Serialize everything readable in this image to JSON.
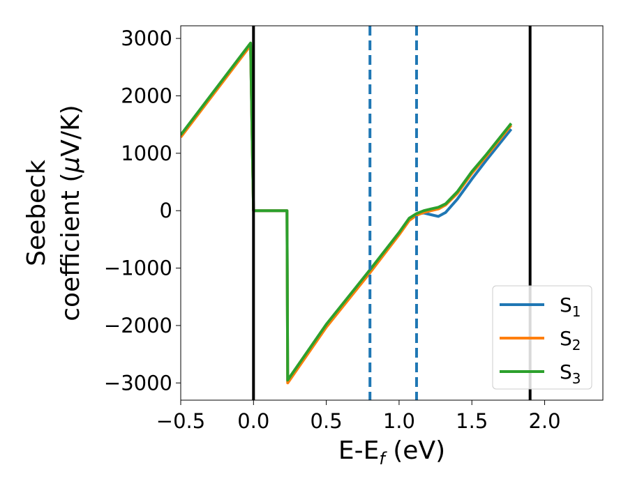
{
  "chart_data": {
    "type": "line",
    "title": "",
    "xlabel": {
      "base": "E-E",
      "sub": "f",
      "suffix": " (eV)"
    },
    "ylabel": {
      "line1": "Seebeck",
      "line2_pre": "coefficient  (",
      "mu": "μ",
      "line2_post": "V/K)"
    },
    "xlim": [
      -0.5,
      2.4
    ],
    "ylim": [
      -3300,
      3220
    ],
    "xticks": [
      -0.5,
      0.0,
      0.5,
      1.0,
      1.5,
      2.0
    ],
    "xtick_labels": [
      "−0.5",
      "0.0",
      "0.5",
      "1.0",
      "1.5",
      "2.0"
    ],
    "yticks": [
      -3000,
      -2000,
      -1000,
      0,
      1000,
      2000,
      3000
    ],
    "ytick_labels": [
      "−3000",
      "−2000",
      "−1000",
      "0",
      "1000",
      "2000",
      "3000"
    ],
    "grid": false,
    "legend_position": "bottom-right",
    "vlines": [
      {
        "x": 0.0,
        "style": "solid",
        "color": "#000000"
      },
      {
        "x": 1.9,
        "style": "solid",
        "color": "#000000"
      },
      {
        "x": 0.8,
        "style": "dashed",
        "color": "#1f77b4"
      },
      {
        "x": 1.12,
        "style": "dashed",
        "color": "#1f77b4"
      }
    ],
    "series": [
      {
        "name": "S",
        "sub": "1",
        "color": "#1f77b4",
        "x": [
          -0.5,
          -0.02,
          -0.01,
          0.0,
          0.23,
          0.235,
          0.5,
          0.8,
          1.0,
          1.07,
          1.12,
          1.17,
          1.22,
          1.27,
          1.32,
          1.4,
          1.5,
          1.6,
          1.77
        ],
        "y": [
          1300,
          2900,
          1400,
          0,
          0,
          -2980,
          -2000,
          -1050,
          -400,
          -150,
          -60,
          -40,
          -70,
          -100,
          -30,
          200,
          550,
          880,
          1420
        ]
      },
      {
        "name": "S",
        "sub": "2",
        "color": "#ff7f0e",
        "x": [
          -0.5,
          -0.02,
          -0.01,
          0.0,
          0.23,
          0.235,
          0.5,
          0.8,
          1.0,
          1.07,
          1.12,
          1.17,
          1.22,
          1.27,
          1.32,
          1.4,
          1.5,
          1.6,
          1.77
        ],
        "y": [
          1280,
          2880,
          1400,
          0,
          0,
          -3000,
          -2030,
          -1080,
          -420,
          -170,
          -80,
          -30,
          0,
          30,
          100,
          300,
          650,
          950,
          1490
        ]
      },
      {
        "name": "S",
        "sub": "3",
        "color": "#2ca02c",
        "x": [
          -0.5,
          -0.02,
          -0.01,
          0.0,
          0.23,
          0.235,
          0.5,
          0.8,
          1.0,
          1.07,
          1.12,
          1.17,
          1.22,
          1.27,
          1.32,
          1.4,
          1.5,
          1.6,
          1.77
        ],
        "y": [
          1320,
          2920,
          1400,
          0,
          0,
          -2950,
          -1980,
          -1030,
          -380,
          -130,
          -50,
          0,
          30,
          60,
          120,
          330,
          680,
          980,
          1520
        ]
      }
    ]
  }
}
